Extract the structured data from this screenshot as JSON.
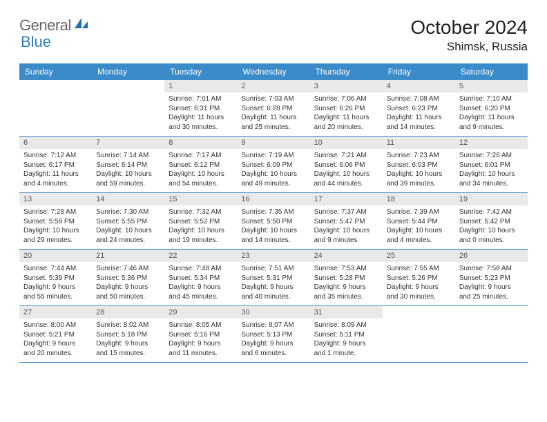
{
  "brand": {
    "text_general": "General",
    "text_blue": "Blue",
    "icon_color": "#1f6db3"
  },
  "header": {
    "month_title": "October 2024",
    "location": "Shimsk, Russia"
  },
  "colors": {
    "header_bg": "#3b8bc9",
    "header_text": "#ffffff",
    "daynum_bg": "#e9e9e9",
    "week_border": "#3b8bc9"
  },
  "days_of_week": [
    "Sunday",
    "Monday",
    "Tuesday",
    "Wednesday",
    "Thursday",
    "Friday",
    "Saturday"
  ],
  "weeks": [
    [
      {
        "empty": true
      },
      {
        "empty": true
      },
      {
        "num": "1",
        "sunrise": "Sunrise: 7:01 AM",
        "sunset": "Sunset: 6:31 PM",
        "daylight1": "Daylight: 11 hours",
        "daylight2": "and 30 minutes."
      },
      {
        "num": "2",
        "sunrise": "Sunrise: 7:03 AM",
        "sunset": "Sunset: 6:28 PM",
        "daylight1": "Daylight: 11 hours",
        "daylight2": "and 25 minutes."
      },
      {
        "num": "3",
        "sunrise": "Sunrise: 7:06 AM",
        "sunset": "Sunset: 6:26 PM",
        "daylight1": "Daylight: 11 hours",
        "daylight2": "and 20 minutes."
      },
      {
        "num": "4",
        "sunrise": "Sunrise: 7:08 AM",
        "sunset": "Sunset: 6:23 PM",
        "daylight1": "Daylight: 11 hours",
        "daylight2": "and 14 minutes."
      },
      {
        "num": "5",
        "sunrise": "Sunrise: 7:10 AM",
        "sunset": "Sunset: 6:20 PM",
        "daylight1": "Daylight: 11 hours",
        "daylight2": "and 9 minutes."
      }
    ],
    [
      {
        "num": "6",
        "sunrise": "Sunrise: 7:12 AM",
        "sunset": "Sunset: 6:17 PM",
        "daylight1": "Daylight: 11 hours",
        "daylight2": "and 4 minutes."
      },
      {
        "num": "7",
        "sunrise": "Sunrise: 7:14 AM",
        "sunset": "Sunset: 6:14 PM",
        "daylight1": "Daylight: 10 hours",
        "daylight2": "and 59 minutes."
      },
      {
        "num": "8",
        "sunrise": "Sunrise: 7:17 AM",
        "sunset": "Sunset: 6:12 PM",
        "daylight1": "Daylight: 10 hours",
        "daylight2": "and 54 minutes."
      },
      {
        "num": "9",
        "sunrise": "Sunrise: 7:19 AM",
        "sunset": "Sunset: 6:09 PM",
        "daylight1": "Daylight: 10 hours",
        "daylight2": "and 49 minutes."
      },
      {
        "num": "10",
        "sunrise": "Sunrise: 7:21 AM",
        "sunset": "Sunset: 6:06 PM",
        "daylight1": "Daylight: 10 hours",
        "daylight2": "and 44 minutes."
      },
      {
        "num": "11",
        "sunrise": "Sunrise: 7:23 AM",
        "sunset": "Sunset: 6:03 PM",
        "daylight1": "Daylight: 10 hours",
        "daylight2": "and 39 minutes."
      },
      {
        "num": "12",
        "sunrise": "Sunrise: 7:26 AM",
        "sunset": "Sunset: 6:01 PM",
        "daylight1": "Daylight: 10 hours",
        "daylight2": "and 34 minutes."
      }
    ],
    [
      {
        "num": "13",
        "sunrise": "Sunrise: 7:28 AM",
        "sunset": "Sunset: 5:58 PM",
        "daylight1": "Daylight: 10 hours",
        "daylight2": "and 29 minutes."
      },
      {
        "num": "14",
        "sunrise": "Sunrise: 7:30 AM",
        "sunset": "Sunset: 5:55 PM",
        "daylight1": "Daylight: 10 hours",
        "daylight2": "and 24 minutes."
      },
      {
        "num": "15",
        "sunrise": "Sunrise: 7:32 AM",
        "sunset": "Sunset: 5:52 PM",
        "daylight1": "Daylight: 10 hours",
        "daylight2": "and 19 minutes."
      },
      {
        "num": "16",
        "sunrise": "Sunrise: 7:35 AM",
        "sunset": "Sunset: 5:50 PM",
        "daylight1": "Daylight: 10 hours",
        "daylight2": "and 14 minutes."
      },
      {
        "num": "17",
        "sunrise": "Sunrise: 7:37 AM",
        "sunset": "Sunset: 5:47 PM",
        "daylight1": "Daylight: 10 hours",
        "daylight2": "and 9 minutes."
      },
      {
        "num": "18",
        "sunrise": "Sunrise: 7:39 AM",
        "sunset": "Sunset: 5:44 PM",
        "daylight1": "Daylight: 10 hours",
        "daylight2": "and 4 minutes."
      },
      {
        "num": "19",
        "sunrise": "Sunrise: 7:42 AM",
        "sunset": "Sunset: 5:42 PM",
        "daylight1": "Daylight: 10 hours",
        "daylight2": "and 0 minutes."
      }
    ],
    [
      {
        "num": "20",
        "sunrise": "Sunrise: 7:44 AM",
        "sunset": "Sunset: 5:39 PM",
        "daylight1": "Daylight: 9 hours",
        "daylight2": "and 55 minutes."
      },
      {
        "num": "21",
        "sunrise": "Sunrise: 7:46 AM",
        "sunset": "Sunset: 5:36 PM",
        "daylight1": "Daylight: 9 hours",
        "daylight2": "and 50 minutes."
      },
      {
        "num": "22",
        "sunrise": "Sunrise: 7:48 AM",
        "sunset": "Sunset: 5:34 PM",
        "daylight1": "Daylight: 9 hours",
        "daylight2": "and 45 minutes."
      },
      {
        "num": "23",
        "sunrise": "Sunrise: 7:51 AM",
        "sunset": "Sunset: 5:31 PM",
        "daylight1": "Daylight: 9 hours",
        "daylight2": "and 40 minutes."
      },
      {
        "num": "24",
        "sunrise": "Sunrise: 7:53 AM",
        "sunset": "Sunset: 5:28 PM",
        "daylight1": "Daylight: 9 hours",
        "daylight2": "and 35 minutes."
      },
      {
        "num": "25",
        "sunrise": "Sunrise: 7:55 AM",
        "sunset": "Sunset: 5:26 PM",
        "daylight1": "Daylight: 9 hours",
        "daylight2": "and 30 minutes."
      },
      {
        "num": "26",
        "sunrise": "Sunrise: 7:58 AM",
        "sunset": "Sunset: 5:23 PM",
        "daylight1": "Daylight: 9 hours",
        "daylight2": "and 25 minutes."
      }
    ],
    [
      {
        "num": "27",
        "sunrise": "Sunrise: 8:00 AM",
        "sunset": "Sunset: 5:21 PM",
        "daylight1": "Daylight: 9 hours",
        "daylight2": "and 20 minutes."
      },
      {
        "num": "28",
        "sunrise": "Sunrise: 8:02 AM",
        "sunset": "Sunset: 5:18 PM",
        "daylight1": "Daylight: 9 hours",
        "daylight2": "and 15 minutes."
      },
      {
        "num": "29",
        "sunrise": "Sunrise: 8:05 AM",
        "sunset": "Sunset: 5:16 PM",
        "daylight1": "Daylight: 9 hours",
        "daylight2": "and 11 minutes."
      },
      {
        "num": "30",
        "sunrise": "Sunrise: 8:07 AM",
        "sunset": "Sunset: 5:13 PM",
        "daylight1": "Daylight: 9 hours",
        "daylight2": "and 6 minutes."
      },
      {
        "num": "31",
        "sunrise": "Sunrise: 8:09 AM",
        "sunset": "Sunset: 5:11 PM",
        "daylight1": "Daylight: 9 hours",
        "daylight2": "and 1 minute."
      },
      {
        "empty": true
      },
      {
        "empty": true
      }
    ]
  ]
}
